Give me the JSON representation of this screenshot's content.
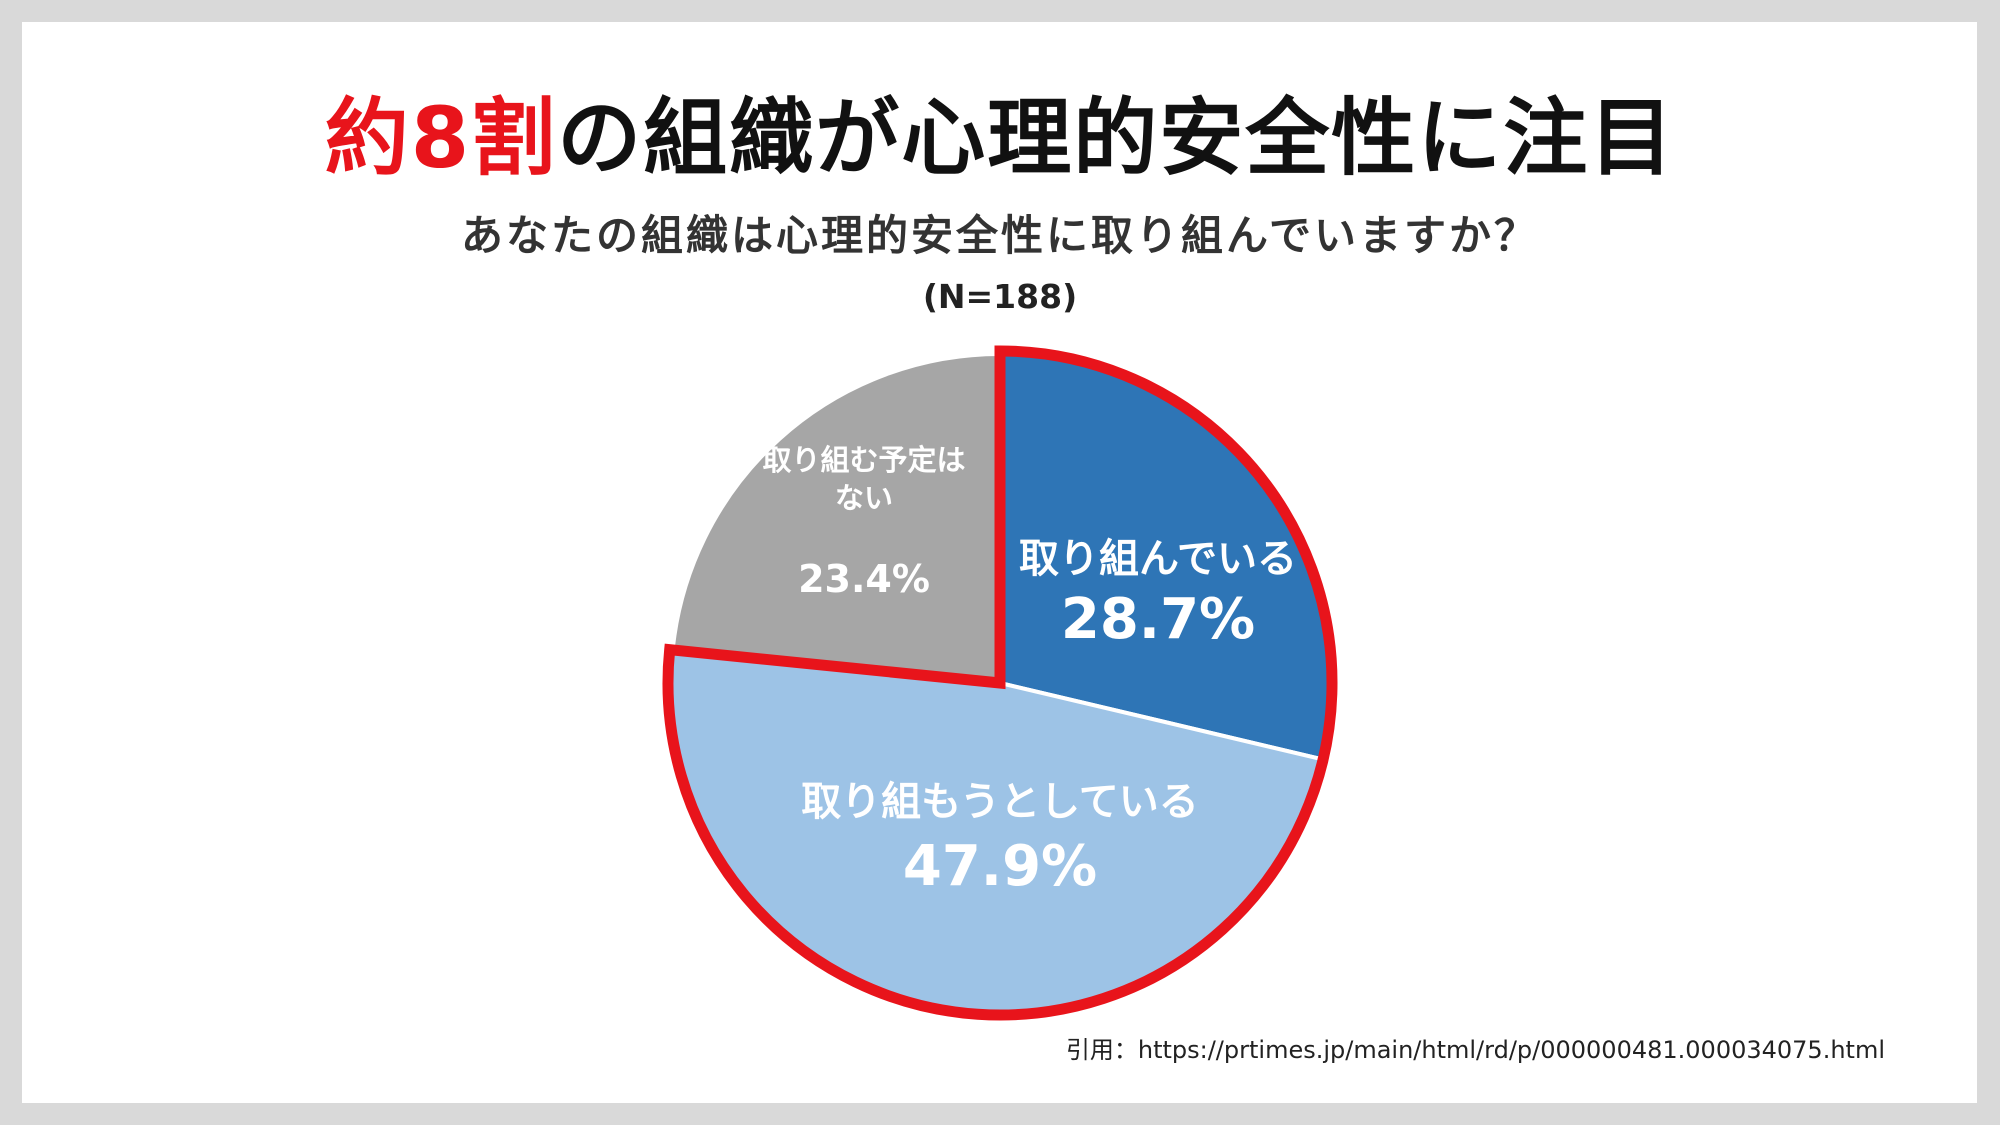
{
  "header": {
    "title_accent": "約8割",
    "title_rest": "の組織が心理的安全性に注目",
    "subtitle": "あなたの組織は心理的安全性に取り組んでいますか？",
    "sample_size": "(N=188)"
  },
  "chart_data": {
    "type": "pie",
    "title": "あなたの組織は心理的安全性に取り組んでいますか？",
    "note": "(N=188)",
    "start": "12 o'clock, clockwise",
    "slices": [
      {
        "label": "取り組んでいる",
        "value": 28.7,
        "value_label": "28.7%",
        "color": "#2e75b6"
      },
      {
        "label": "取り組もうとしている",
        "value": 47.9,
        "value_label": "47.9%",
        "color": "#9dc3e6"
      },
      {
        "label": "取り組む予定はない",
        "label_lines": [
          "取り組む予定は",
          "ない"
        ],
        "value": 23.4,
        "value_label": "23.4%",
        "color": "#a6a6a6"
      }
    ],
    "highlight": {
      "slices": [
        "取り組んでいる",
        "取り組もうとしている"
      ],
      "outline_color": "#e8141b"
    }
  },
  "footer": {
    "source": "引用：https://prtimes.jp/main/html/rd/p/000000481.000034075.html"
  }
}
